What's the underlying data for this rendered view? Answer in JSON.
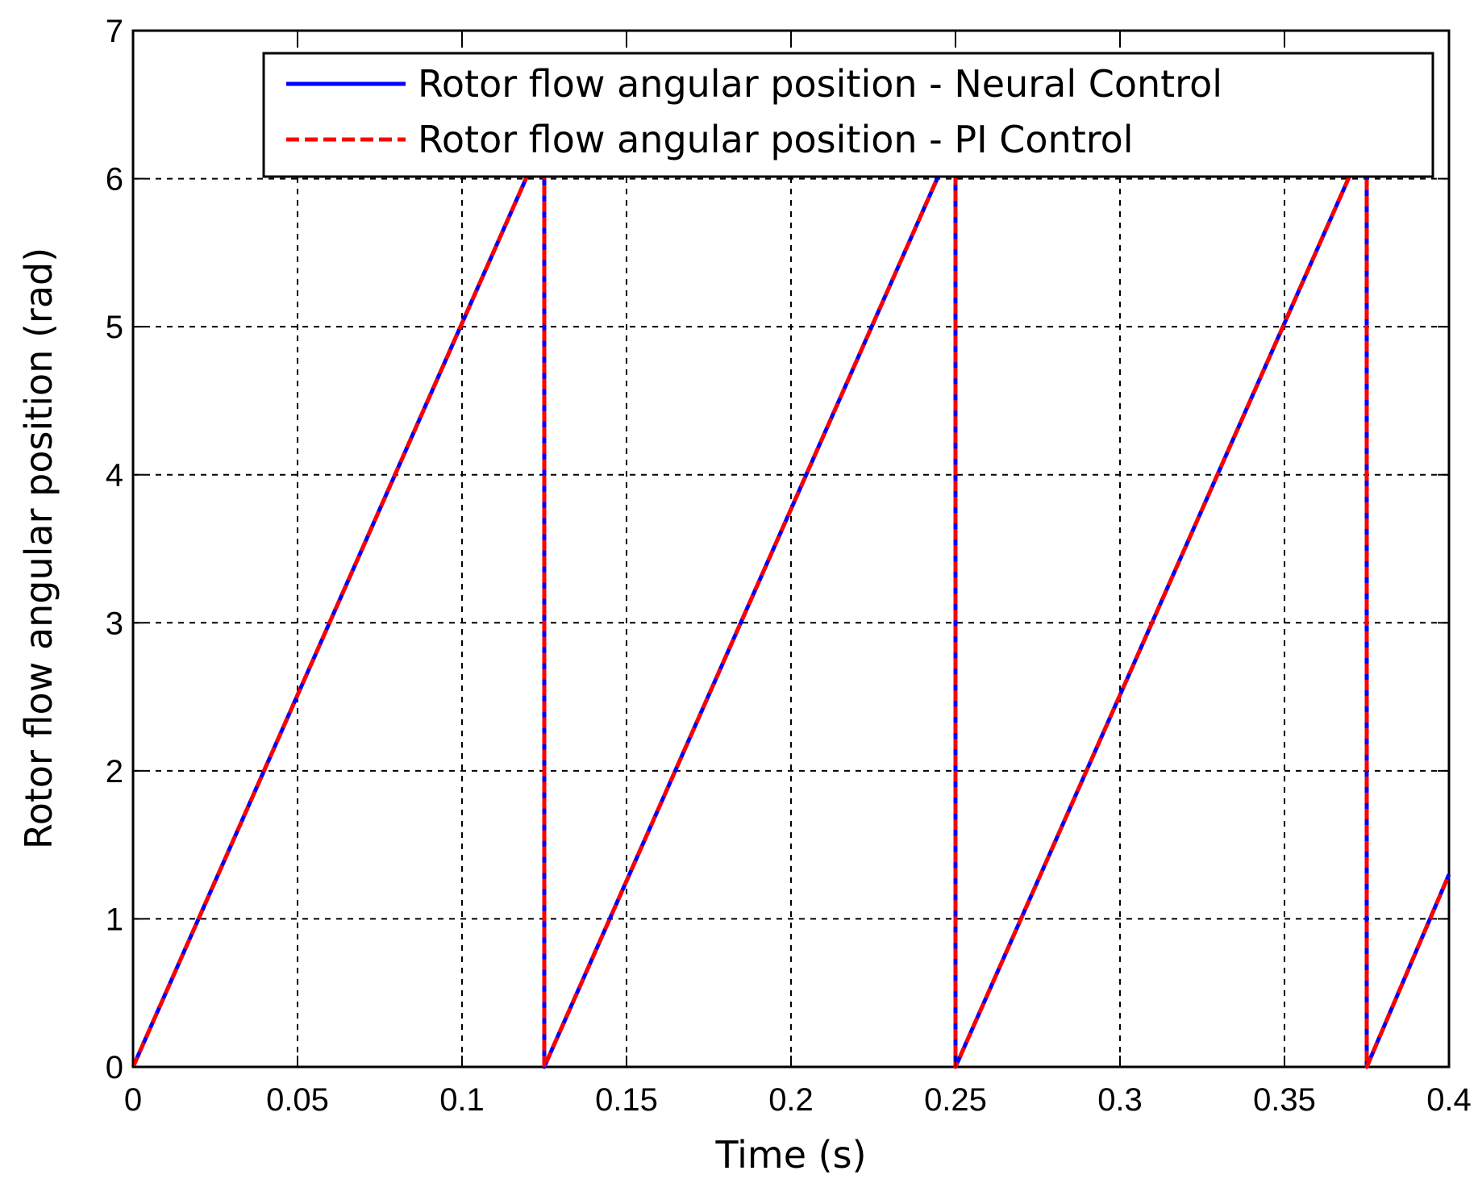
{
  "chart_data": {
    "type": "line",
    "title": "",
    "xlabel": "Time (s)",
    "ylabel": "Rotor flow angular position (rad)",
    "xlim": [
      0,
      0.4
    ],
    "ylim": [
      0,
      7
    ],
    "x_ticks": [
      0,
      0.05,
      0.1,
      0.15,
      0.2,
      0.25,
      0.3,
      0.35,
      0.4
    ],
    "x_tick_labels": [
      "0",
      "0.05",
      "0.1",
      "0.15",
      "0.2",
      "0.25",
      "0.3",
      "0.35",
      "0.4"
    ],
    "y_ticks": [
      0,
      1,
      2,
      3,
      4,
      5,
      6,
      7
    ],
    "y_tick_labels": [
      "0",
      "1",
      "2",
      "3",
      "4",
      "5",
      "6",
      "7"
    ],
    "grid": true,
    "legend_position": "top-right",
    "series": [
      {
        "name": "Rotor flow angular position - Neural Control",
        "color": "#0000ff",
        "style": "solid",
        "x": [
          0,
          0.125,
          0.125,
          0.25,
          0.25,
          0.375,
          0.375,
          0.4
        ],
        "y": [
          0,
          6.28,
          0,
          6.28,
          0,
          6.28,
          0,
          1.3
        ]
      },
      {
        "name": "Rotor flow angular position - PI Control",
        "color": "#ff0000",
        "style": "dashed",
        "x": [
          0,
          0.125,
          0.125,
          0.25,
          0.25,
          0.375,
          0.375,
          0.4
        ],
        "y": [
          0,
          6.28,
          0,
          6.28,
          0,
          6.28,
          0,
          1.3
        ]
      }
    ]
  }
}
